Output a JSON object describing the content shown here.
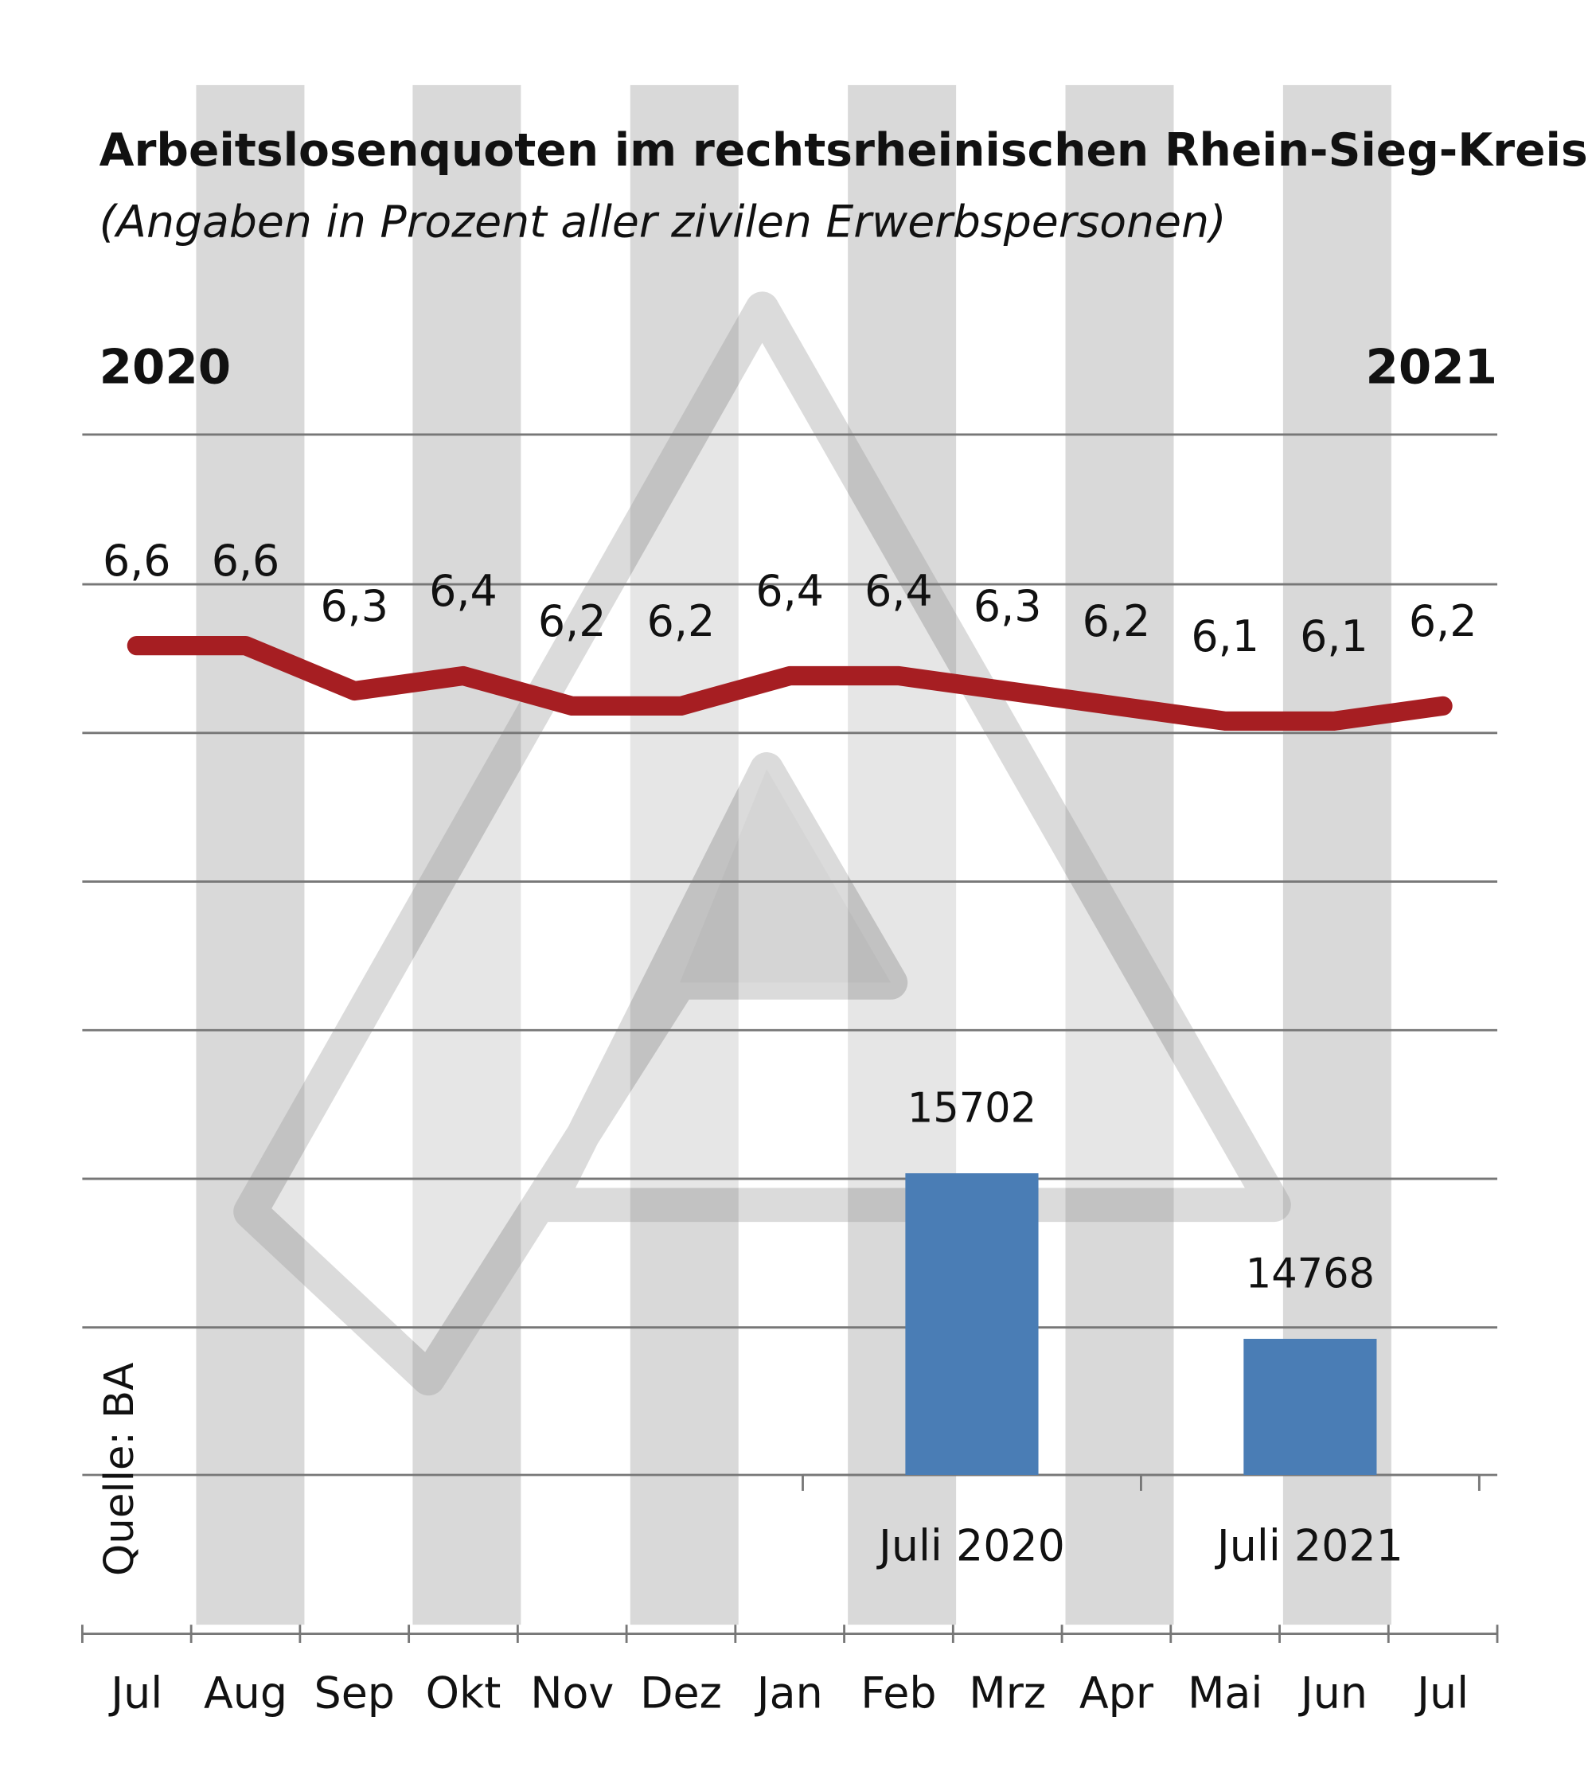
{
  "chart_data": [
    {
      "type": "line",
      "title": "Arbeitslosenquoten im rechtsrheinischen Rhein-Sieg-Kreis:",
      "subtitle": "(Angaben in Prozent aller zivilen Erwerbspersonen)",
      "year_labels": [
        "2020",
        "2021"
      ],
      "source": "Quelle: BA",
      "categories": [
        "Jul",
        "Aug",
        "Sep",
        "Okt",
        "Nov",
        "Dez",
        "Jan",
        "Feb",
        "Mrz",
        "Apr",
        "Mai",
        "Jun",
        "Jul"
      ],
      "values": [
        6.6,
        6.6,
        6.3,
        6.4,
        6.2,
        6.2,
        6.4,
        6.4,
        6.3,
        6.2,
        6.1,
        6.1,
        6.2
      ],
      "value_labels": [
        "6,6",
        "6,6",
        "6,3",
        "6,4",
        "6,2",
        "6,2",
        "6,4",
        "6,4",
        "6,3",
        "6,2",
        "6,1",
        "6,1",
        "6,2"
      ],
      "color": "#a61e22",
      "ylim": [
        1.1,
        8.0
      ]
    },
    {
      "type": "bar",
      "categories": [
        "Juli 2020",
        "Juli 2021"
      ],
      "values": [
        15702,
        14768
      ],
      "color": "#4a7db5",
      "ylim": [
        14000,
        19870
      ]
    }
  ]
}
